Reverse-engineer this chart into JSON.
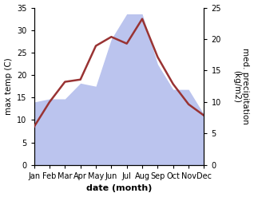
{
  "months": [
    "Jan",
    "Feb",
    "Mar",
    "Apr",
    "May",
    "Jun",
    "Jul",
    "Aug",
    "Sep",
    "Oct",
    "Nov",
    "Dec"
  ],
  "month_positions": [
    0,
    1,
    2,
    3,
    4,
    5,
    6,
    7,
    8,
    9,
    10,
    11
  ],
  "max_temp": [
    8.5,
    14.0,
    18.5,
    19.0,
    26.5,
    28.5,
    27.0,
    32.5,
    24.0,
    18.0,
    13.5,
    11.0
  ],
  "precipitation": [
    10.0,
    10.5,
    10.5,
    13.0,
    12.5,
    20.0,
    24.0,
    24.0,
    16.0,
    12.0,
    12.0,
    8.0
  ],
  "temp_color": "#993333",
  "precip_fill_color": "#bbc4ee",
  "temp_ylim": [
    0,
    35
  ],
  "precip_ylim": [
    0,
    25
  ],
  "temp_yticks": [
    0,
    5,
    10,
    15,
    20,
    25,
    30,
    35
  ],
  "precip_yticks": [
    0,
    5,
    10,
    15,
    20,
    25
  ],
  "xlabel": "date (month)",
  "ylabel_left": "max temp (C)",
  "ylabel_right": "med. precipitation\n(kg/m2)",
  "bg_color": "#ffffff",
  "label_fontsize": 7.5,
  "tick_fontsize": 7,
  "xlabel_fontsize": 8
}
